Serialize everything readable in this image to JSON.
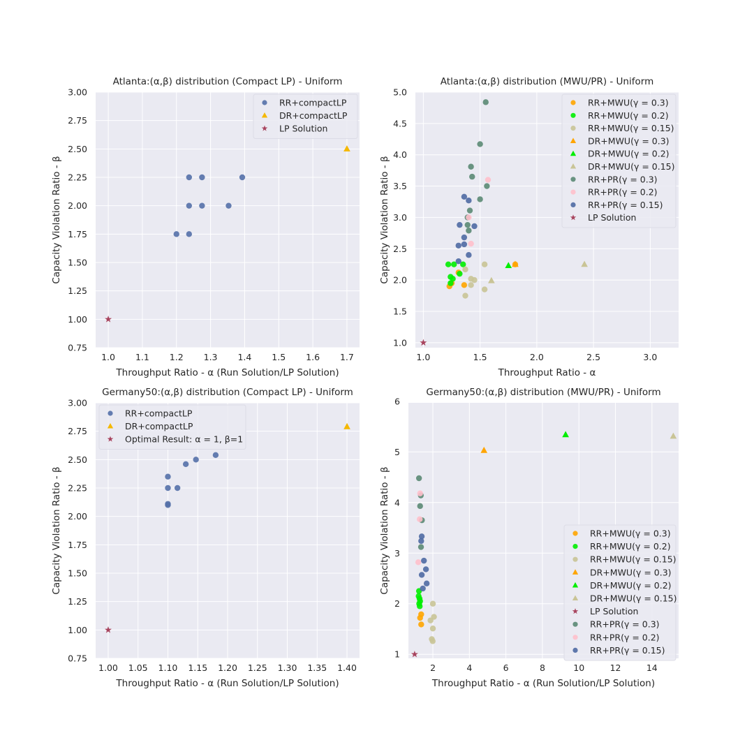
{
  "chart_data": [
    {
      "type": "scatter",
      "title": "Atlanta:(α,β) distribution (Compact LP) - Uniform",
      "xlabel": "Throughput Ratio - α (Run Solution/LP Solution)",
      "ylabel": "Capacity Violation Ratio - β",
      "xlim": [
        0.963,
        1.737
      ],
      "ylim": [
        0.75,
        3.0
      ],
      "xticks": [
        "1.0",
        "1.1",
        "1.2",
        "1.3",
        "1.4",
        "1.5",
        "1.6",
        "1.7"
      ],
      "yticks": [
        "0.75",
        "1.00",
        "1.25",
        "1.50",
        "1.75",
        "2.00",
        "2.25",
        "2.50",
        "2.75",
        "3.00"
      ],
      "grid": true,
      "legend_position": "top-right",
      "series": [
        {
          "name": "RR+compactLP",
          "marker": "circle",
          "color": "#5470a8",
          "points": [
            [
              1.237,
              2.25
            ],
            [
              1.275,
              2.25
            ],
            [
              1.393,
              2.25
            ],
            [
              1.237,
              2.0
            ],
            [
              1.275,
              2.0
            ],
            [
              1.353,
              2.0
            ],
            [
              1.2,
              1.75
            ],
            [
              1.237,
              1.75
            ]
          ]
        },
        {
          "name": "DR+compactLP",
          "marker": "triangle",
          "color": "#f5b800",
          "points": [
            [
              1.7,
              2.5
            ]
          ]
        },
        {
          "name": "LP Solution",
          "marker": "star",
          "color": "#a8445e",
          "points": [
            [
              1.0,
              1.0
            ]
          ]
        }
      ]
    },
    {
      "type": "scatter",
      "title": "Atlanta:(α,β) distribution (MWU/PR) - Uniform",
      "xlabel": "Throughput Ratio - α",
      "ylabel": "Capacity Violation Ratio - β",
      "xlim": [
        0.93,
        3.25
      ],
      "ylim": [
        0.92,
        5.0
      ],
      "xticks": [
        "1.0",
        "1.5",
        "2.0",
        "2.5",
        "3.0"
      ],
      "yticks": [
        "1.0",
        "1.5",
        "2.0",
        "2.5",
        "3.0",
        "3.5",
        "4.0",
        "4.5",
        "5.0"
      ],
      "grid": true,
      "legend_position": "top-right",
      "series": [
        {
          "name": "RR+MWU(γ = 0.3)",
          "marker": "circle",
          "color": "#ffa500",
          "points": [
            [
              1.23,
              1.9
            ],
            [
              1.25,
              1.95
            ],
            [
              1.31,
              2.12
            ],
            [
              1.36,
              1.92
            ],
            [
              1.81,
              2.25
            ]
          ]
        },
        {
          "name": "RR+MWU(γ = 0.2)",
          "marker": "circle",
          "color": "#00ee00",
          "points": [
            [
              1.22,
              2.25
            ],
            [
              1.27,
              2.25
            ],
            [
              1.35,
              2.25
            ],
            [
              1.24,
              2.05
            ],
            [
              1.26,
              2.02
            ],
            [
              1.24,
              1.95
            ],
            [
              1.32,
              2.1
            ]
          ]
        },
        {
          "name": "RR+MWU(γ = 0.15)",
          "marker": "circle",
          "color": "#c9c496",
          "points": [
            [
              1.54,
              2.25
            ],
            [
              1.37,
              2.17
            ],
            [
              1.42,
              2.02
            ],
            [
              1.45,
              2.0
            ],
            [
              1.42,
              1.92
            ],
            [
              1.37,
              1.75
            ],
            [
              1.54,
              1.85
            ]
          ]
        },
        {
          "name": "DR+MWU(γ = 0.3)",
          "marker": "triangle",
          "color": "#ffa500",
          "points": [
            [
              1.81,
              2.25
            ]
          ]
        },
        {
          "name": "DR+MWU(γ = 0.2)",
          "marker": "triangle",
          "color": "#00ee00",
          "points": [
            [
              1.75,
              2.23
            ]
          ]
        },
        {
          "name": "DR+MWU(γ = 0.15)",
          "marker": "triangle",
          "color": "#c9c496",
          "points": [
            [
              2.42,
              2.25
            ],
            [
              1.6,
              1.99
            ]
          ]
        },
        {
          "name": "RR+PR(γ = 0.3)",
          "marker": "circle",
          "color": "#5b8a74",
          "points": [
            [
              1.55,
              4.84
            ],
            [
              1.5,
              4.17
            ],
            [
              1.42,
              3.81
            ],
            [
              1.43,
              3.65
            ],
            [
              1.56,
              3.5
            ],
            [
              1.5,
              3.29
            ],
            [
              1.41,
              3.11
            ],
            [
              1.39,
              3.0
            ],
            [
              1.39,
              2.88
            ],
            [
              1.4,
              2.79
            ]
          ]
        },
        {
          "name": "RR+PR(γ = 0.2)",
          "marker": "circle",
          "color": "#ffc0cb",
          "points": [
            [
              1.57,
              3.6
            ],
            [
              1.42,
              2.58
            ],
            [
              1.4,
              3.0
            ]
          ]
        },
        {
          "name": "RR+PR(γ = 0.15)",
          "marker": "circle",
          "color": "#4f6aa3",
          "points": [
            [
              1.36,
              3.33
            ],
            [
              1.4,
              3.27
            ],
            [
              1.32,
              2.88
            ],
            [
              1.45,
              2.86
            ],
            [
              1.36,
              2.68
            ],
            [
              1.36,
              2.57
            ],
            [
              1.31,
              2.55
            ],
            [
              1.4,
              2.4
            ],
            [
              1.31,
              2.3
            ]
          ]
        },
        {
          "name": "LP Solution",
          "marker": "star",
          "color": "#a8445e",
          "points": [
            [
              1.0,
              1.0
            ]
          ]
        }
      ]
    },
    {
      "type": "scatter",
      "title": "Germany50:(α,β) distribution (Compact LP) - Uniform",
      "xlabel": "Throughput Ratio - α (Run Solution/LP Solution)",
      "ylabel": "Capacity Violation Ratio - β",
      "xlim": [
        0.979,
        1.421
      ],
      "ylim": [
        0.75,
        3.0
      ],
      "xticks": [
        "1.00",
        "1.05",
        "1.10",
        "1.15",
        "1.20",
        "1.25",
        "1.30",
        "1.35",
        "1.40"
      ],
      "yticks": [
        "0.75",
        "1.00",
        "1.25",
        "1.50",
        "1.75",
        "2.00",
        "2.25",
        "2.50",
        "2.75",
        "3.00"
      ],
      "grid": true,
      "legend_position": "top-left",
      "series": [
        {
          "name": "RR+compactLP",
          "marker": "circle",
          "color": "#5470a8",
          "points": [
            [
              1.1,
              2.35
            ],
            [
              1.1,
              2.25
            ],
            [
              1.116,
              2.25
            ],
            [
              1.1,
              2.1
            ],
            [
              1.1,
              2.11
            ],
            [
              1.13,
              2.46
            ],
            [
              1.147,
              2.5
            ],
            [
              1.18,
              2.54
            ]
          ]
        },
        {
          "name": "DR+compactLP",
          "marker": "triangle",
          "color": "#f5b800",
          "points": [
            [
              1.4,
              2.79
            ]
          ]
        },
        {
          "name": "Optimal Result: α = 1, β=1",
          "marker": "star",
          "color": "#a8445e",
          "points": [
            [
              1.0,
              1.0
            ]
          ]
        }
      ]
    },
    {
      "type": "scatter",
      "title": "Germany50:(α,β) distribution (MWU/PR) - Uniform",
      "xlabel": "Throughput Ratio - α (Run Solution/LP Solution)",
      "ylabel": "Capacity Violation Ratio - β",
      "xlim": [
        0.66,
        15.46
      ],
      "ylim": [
        0.92,
        5.97
      ],
      "xticks": [
        "2",
        "4",
        "6",
        "8",
        "10",
        "12",
        "14"
      ],
      "yticks": [
        "1",
        "2",
        "3",
        "4",
        "5",
        "6"
      ],
      "grid": true,
      "legend_position": "lower-right",
      "series": [
        {
          "name": "RR+MWU(γ = 0.3)",
          "marker": "circle",
          "color": "#ffa500",
          "points": [
            [
              1.36,
              1.79
            ],
            [
              1.3,
              1.72
            ],
            [
              1.36,
              1.59
            ]
          ]
        },
        {
          "name": "RR+MWU(γ = 0.2)",
          "marker": "circle",
          "color": "#00ee00",
          "points": [
            [
              1.24,
              2.25
            ],
            [
              1.22,
              2.15
            ],
            [
              1.27,
              2.1
            ],
            [
              1.3,
              2.05
            ],
            [
              1.25,
              2.0
            ],
            [
              1.28,
              1.95
            ]
          ]
        },
        {
          "name": "RR+MWU(γ = 0.15)",
          "marker": "circle",
          "color": "#c9c496",
          "points": [
            [
              2.0,
              2.0
            ],
            [
              2.06,
              1.74
            ],
            [
              1.87,
              1.67
            ],
            [
              2.0,
              1.51
            ],
            [
              1.94,
              1.3
            ],
            [
              1.99,
              1.26
            ]
          ]
        },
        {
          "name": "DR+MWU(γ = 0.3)",
          "marker": "triangle",
          "color": "#ffa500",
          "points": [
            [
              4.8,
              5.03
            ]
          ]
        },
        {
          "name": "DR+MWU(γ = 0.2)",
          "marker": "triangle",
          "color": "#00ee00",
          "points": [
            [
              9.27,
              5.34
            ]
          ]
        },
        {
          "name": "DR+MWU(γ = 0.15)",
          "marker": "triangle",
          "color": "#c9c496",
          "points": [
            [
              15.17,
              5.31
            ]
          ]
        },
        {
          "name": "LP Solution",
          "marker": "star",
          "color": "#a8445e",
          "points": [
            [
              1.0,
              1.0
            ]
          ]
        },
        {
          "name": "RR+PR(γ = 0.3)",
          "marker": "circle",
          "color": "#5b8a74",
          "points": [
            [
              1.24,
              4.48
            ],
            [
              1.34,
              4.14
            ],
            [
              1.3,
              3.93
            ],
            [
              1.4,
              3.65
            ],
            [
              1.35,
              3.12
            ]
          ]
        },
        {
          "name": "RR+PR(γ = 0.2)",
          "marker": "circle",
          "color": "#ffc0cb",
          "points": [
            [
              1.28,
              3.67
            ],
            [
              1.3,
              4.18
            ],
            [
              1.2,
              2.82
            ]
          ]
        },
        {
          "name": "RR+PR(γ = 0.15)",
          "marker": "circle",
          "color": "#4f6aa3",
          "points": [
            [
              1.39,
              3.33
            ],
            [
              1.36,
              3.24
            ],
            [
              1.51,
              2.85
            ],
            [
              1.62,
              2.68
            ],
            [
              1.39,
              2.57
            ],
            [
              1.66,
              2.4
            ],
            [
              1.45,
              2.3
            ]
          ]
        }
      ]
    }
  ],
  "colors": {
    "axes_background": "#eaeaf2",
    "grid": "#ffffff",
    "text": "#262626"
  }
}
